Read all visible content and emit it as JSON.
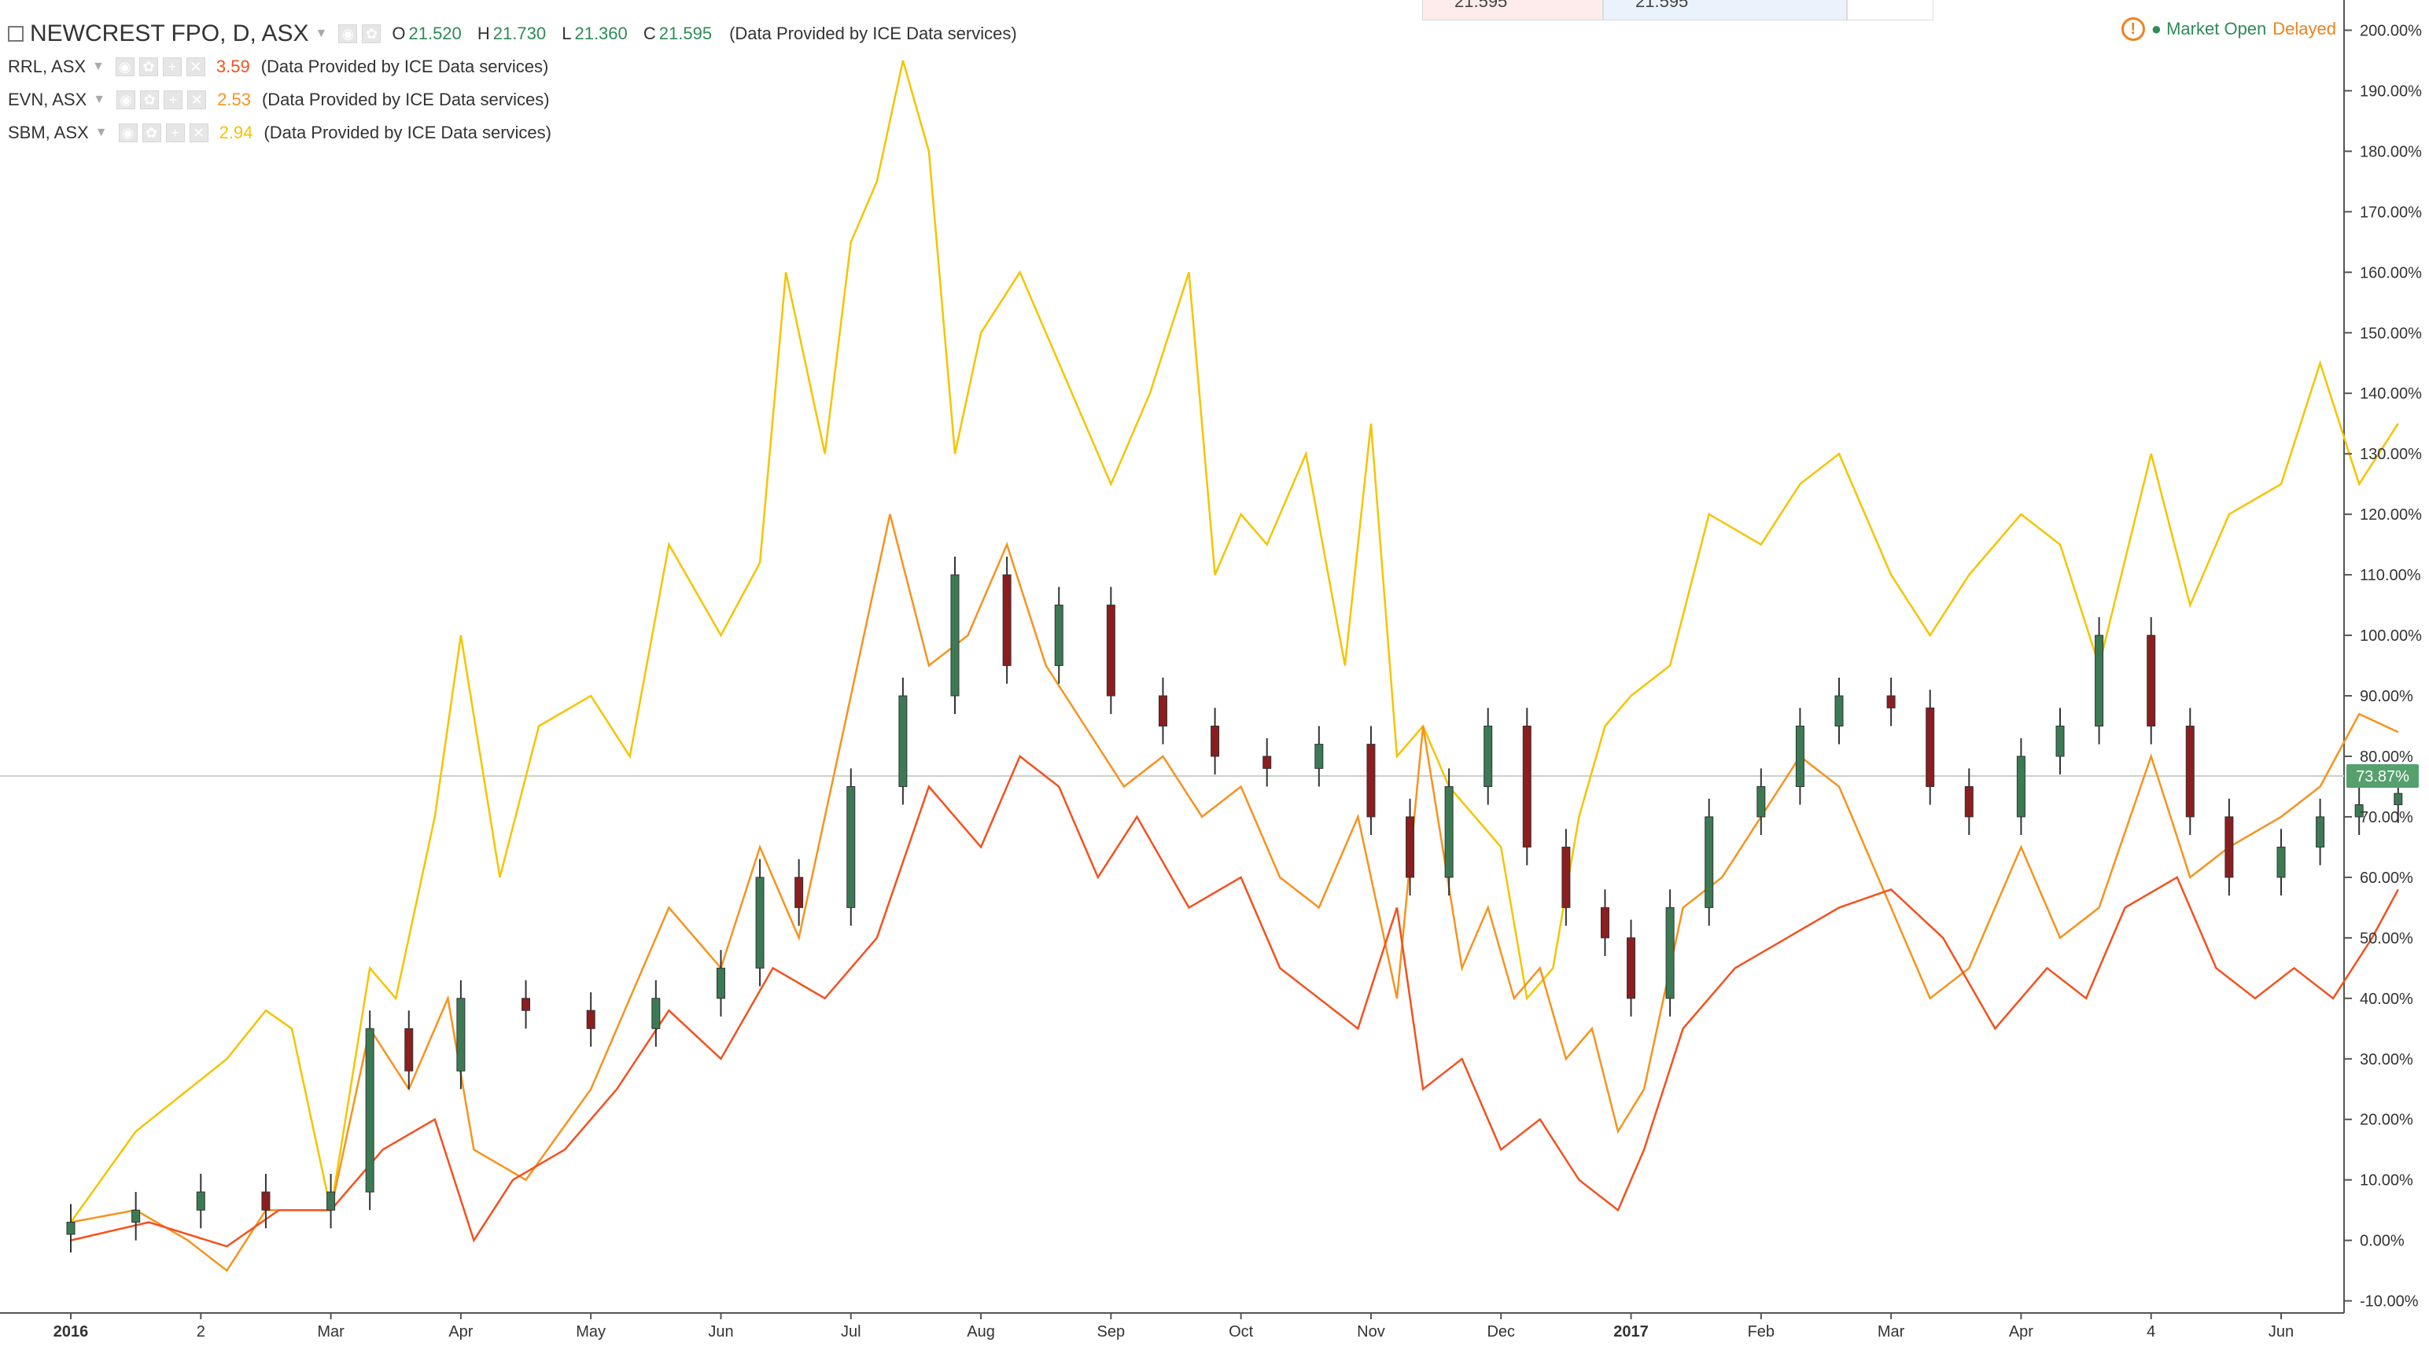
{
  "header": {
    "title": "NEWCREST FPO, D, ASX",
    "ohlc": [
      {
        "k": "O",
        "v": "21.520"
      },
      {
        "k": "H",
        "v": "21.730"
      },
      {
        "k": "L",
        "v": "21.360"
      },
      {
        "k": "C",
        "v": "21.595"
      }
    ],
    "provider": "(Data Provided by ICE Data services)",
    "top_value_1": "21.595",
    "top_value_2": "21.595"
  },
  "status": {
    "market": "Market Open",
    "delay": "Delayed"
  },
  "comparisons": [
    {
      "symbol": "RRL, ASX",
      "value": "3.59",
      "color": "#f4511e",
      "provider": "(Data Provided by ICE Data services)"
    },
    {
      "symbol": "EVN, ASX",
      "value": "2.53",
      "color": "#f7931e",
      "provider": "(Data Provided by ICE Data services)"
    },
    {
      "symbol": "SBM, ASX",
      "value": "2.94",
      "color": "#f5c400",
      "provider": "(Data Provided by ICE Data services)"
    }
  ],
  "colors": {
    "up_candle": "#3c7a54",
    "down_candle": "#8b1e1e",
    "axis_text": "#333333",
    "last_value_badge": "#56a06d"
  },
  "chart_data": {
    "type": "line",
    "x_axis_labels": [
      "2016",
      "2",
      "Mar",
      "Apr",
      "May",
      "Jun",
      "Jul",
      "Aug",
      "Sep",
      "Oct",
      "Nov",
      "Dec",
      "2017",
      "Feb",
      "Mar",
      "Apr",
      "4",
      "Jun"
    ],
    "y_axis_labels": [
      "200.00%",
      "190.00%",
      "180.00%",
      "170.00%",
      "160.00%",
      "150.00%",
      "140.00%",
      "130.00%",
      "120.00%",
      "110.00%",
      "100.00%",
      "90.00%",
      "80.00%",
      "70.00%",
      "60.00%",
      "50.00%",
      "40.00%",
      "30.00%",
      "20.00%",
      "10.00%",
      "0.00%",
      "-10.00%"
    ],
    "y_unit": "%",
    "ylim": [
      -12,
      205
    ],
    "last_value_label": "73.87%",
    "last_value": 73.87,
    "legend_position": "top-left",
    "series": [
      {
        "name": "SBM, ASX",
        "kind": "line",
        "color": "#f5c400",
        "x": [
          0,
          0.5,
          1.2,
          1.5,
          1.7,
          2,
          2.3,
          2.5,
          2.8,
          3,
          3.3,
          3.6,
          4,
          4.3,
          4.6,
          5,
          5.3,
          5.5,
          5.8,
          6,
          6.2,
          6.4,
          6.6,
          6.8,
          7,
          7.3,
          7.5,
          7.8,
          8,
          8.3,
          8.6,
          8.8,
          9,
          9.2,
          9.5,
          9.8,
          10,
          10.2,
          10.4,
          10.6,
          10.8,
          11,
          11.2,
          11.4,
          11.6,
          11.8,
          12,
          12.3,
          12.6,
          13,
          13.3,
          13.6,
          14,
          14.3,
          14.6,
          15,
          15.3,
          15.6,
          16,
          16.3,
          16.6,
          17,
          17.3,
          17.6,
          17.9
        ],
        "values": [
          3,
          18,
          30,
          38,
          35,
          5,
          45,
          40,
          70,
          100,
          60,
          85,
          90,
          80,
          115,
          100,
          112,
          160,
          130,
          165,
          175,
          195,
          180,
          130,
          150,
          160,
          150,
          135,
          125,
          140,
          160,
          110,
          120,
          115,
          130,
          95,
          135,
          80,
          85,
          75,
          70,
          65,
          40,
          45,
          70,
          85,
          90,
          95,
          120,
          115,
          125,
          130,
          110,
          100,
          110,
          120,
          115,
          95,
          130,
          105,
          120,
          125,
          145,
          125,
          135
        ]
      },
      {
        "name": "EVN, ASX",
        "kind": "line",
        "color": "#f7931e",
        "x": [
          0,
          0.5,
          0.9,
          1.2,
          1.5,
          2,
          2.3,
          2.6,
          2.9,
          3.1,
          3.5,
          4,
          4.3,
          4.6,
          5,
          5.3,
          5.6,
          6,
          6.3,
          6.6,
          6.9,
          7.2,
          7.5,
          7.8,
          8.1,
          8.4,
          8.7,
          9,
          9.3,
          9.6,
          9.9,
          10.2,
          10.4,
          10.7,
          10.9,
          11.1,
          11.3,
          11.5,
          11.7,
          11.9,
          12.1,
          12.4,
          12.7,
          13,
          13.3,
          13.6,
          14,
          14.3,
          14.6,
          15,
          15.3,
          15.6,
          16,
          16.3,
          16.6,
          17,
          17.3,
          17.6,
          17.9
        ],
        "values": [
          3,
          5,
          0,
          -5,
          5,
          5,
          35,
          25,
          40,
          15,
          10,
          25,
          40,
          55,
          45,
          65,
          50,
          90,
          120,
          95,
          100,
          115,
          95,
          85,
          75,
          80,
          70,
          75,
          60,
          55,
          70,
          40,
          85,
          45,
          55,
          40,
          45,
          30,
          35,
          18,
          25,
          55,
          60,
          70,
          80,
          75,
          55,
          40,
          45,
          65,
          50,
          55,
          80,
          60,
          65,
          70,
          75,
          87,
          84
        ]
      },
      {
        "name": "RRL, ASX",
        "kind": "line",
        "color": "#f4511e",
        "x": [
          0,
          0.6,
          1.2,
          1.6,
          2,
          2.4,
          2.8,
          3.1,
          3.4,
          3.8,
          4.2,
          4.6,
          5,
          5.4,
          5.8,
          6.2,
          6.6,
          7,
          7.3,
          7.6,
          7.9,
          8.2,
          8.6,
          9,
          9.3,
          9.6,
          9.9,
          10.2,
          10.4,
          10.7,
          11,
          11.3,
          11.6,
          11.9,
          12.1,
          12.4,
          12.8,
          13.2,
          13.6,
          14,
          14.4,
          14.8,
          15.2,
          15.5,
          15.8,
          16.2,
          16.5,
          16.8,
          17.1,
          17.4,
          17.7,
          17.9
        ],
        "values": [
          0,
          3,
          -1,
          5,
          5,
          15,
          20,
          0,
          10,
          15,
          25,
          38,
          30,
          45,
          40,
          50,
          75,
          65,
          80,
          75,
          60,
          70,
          55,
          60,
          45,
          40,
          35,
          55,
          25,
          30,
          15,
          20,
          10,
          5,
          15,
          35,
          45,
          50,
          55,
          58,
          50,
          35,
          45,
          40,
          55,
          60,
          45,
          40,
          45,
          40,
          50,
          58
        ]
      },
      {
        "name": "NEWCREST FPO, D, ASX",
        "kind": "candlestick",
        "x": [
          0,
          0.5,
          1,
          1.5,
          2,
          2.3,
          2.6,
          3,
          3.5,
          4,
          4.5,
          5,
          5.3,
          5.6,
          6,
          6.4,
          6.8,
          7.2,
          7.6,
          8,
          8.4,
          8.8,
          9.2,
          9.6,
          10,
          10.3,
          10.6,
          10.9,
          11.2,
          11.5,
          11.8,
          12,
          12.3,
          12.6,
          13,
          13.3,
          13.6,
          14,
          14.3,
          14.6,
          15,
          15.3,
          15.6,
          16,
          16.3,
          16.6,
          17,
          17.3,
          17.6,
          17.9
        ],
        "values": [
          3,
          5,
          8,
          5,
          8,
          35,
          28,
          40,
          38,
          35,
          40,
          45,
          60,
          55,
          75,
          90,
          110,
          95,
          105,
          90,
          85,
          80,
          78,
          82,
          70,
          60,
          75,
          85,
          65,
          55,
          50,
          40,
          55,
          70,
          75,
          85,
          90,
          88,
          75,
          70,
          80,
          85,
          100,
          85,
          70,
          60,
          65,
          70,
          72,
          73.87
        ]
      }
    ]
  }
}
